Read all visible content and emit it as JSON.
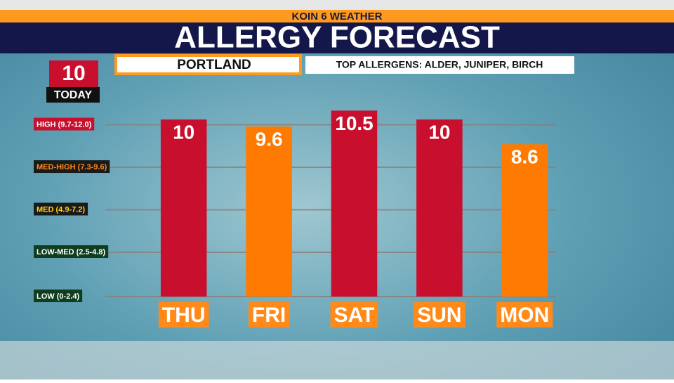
{
  "header": {
    "network": "KOIN 6 WEATHER",
    "location": "PORTLAND",
    "allergens": "TOP ALLERGENS:  ALDER, JUNIPER, BIRCH"
  },
  "today": {
    "value": 10,
    "label": "TODAY",
    "color": "#c8102e"
  },
  "chart_data": {
    "type": "bar",
    "title": "ALLERGY FORECAST",
    "categories": [
      "THU",
      "FRI",
      "SAT",
      "SUN",
      "MON"
    ],
    "values": [
      10,
      9.6,
      10.5,
      10,
      8.6
    ],
    "colors": [
      "#c8102e",
      "#ff7a00",
      "#c8102e",
      "#c8102e",
      "#ff7a00"
    ],
    "ylim": [
      0,
      12
    ],
    "yticks": [
      {
        "value": 0,
        "label": "LOW (0-2.4)"
      },
      {
        "value": 2.5,
        "label": "LOW-MED (2.5-4.8)"
      },
      {
        "value": 4.9,
        "label": "MED (4.9-7.2)"
      },
      {
        "value": 7.3,
        "label": "MED-HIGH (7.3-9.6)"
      },
      {
        "value": 9.7,
        "label": "HIGH (9.7-12.0)"
      }
    ],
    "tick_colors": [
      [
        "#0f3d1e",
        "#ffffff"
      ],
      [
        "#0f3d1e",
        "#ffffff"
      ],
      [
        "#1a1a1a",
        "#ffd21f"
      ],
      [
        "#1a1a1a",
        "#ff8a1a"
      ],
      [
        "#c8102e",
        "#ffffff"
      ]
    ],
    "grid": true
  }
}
